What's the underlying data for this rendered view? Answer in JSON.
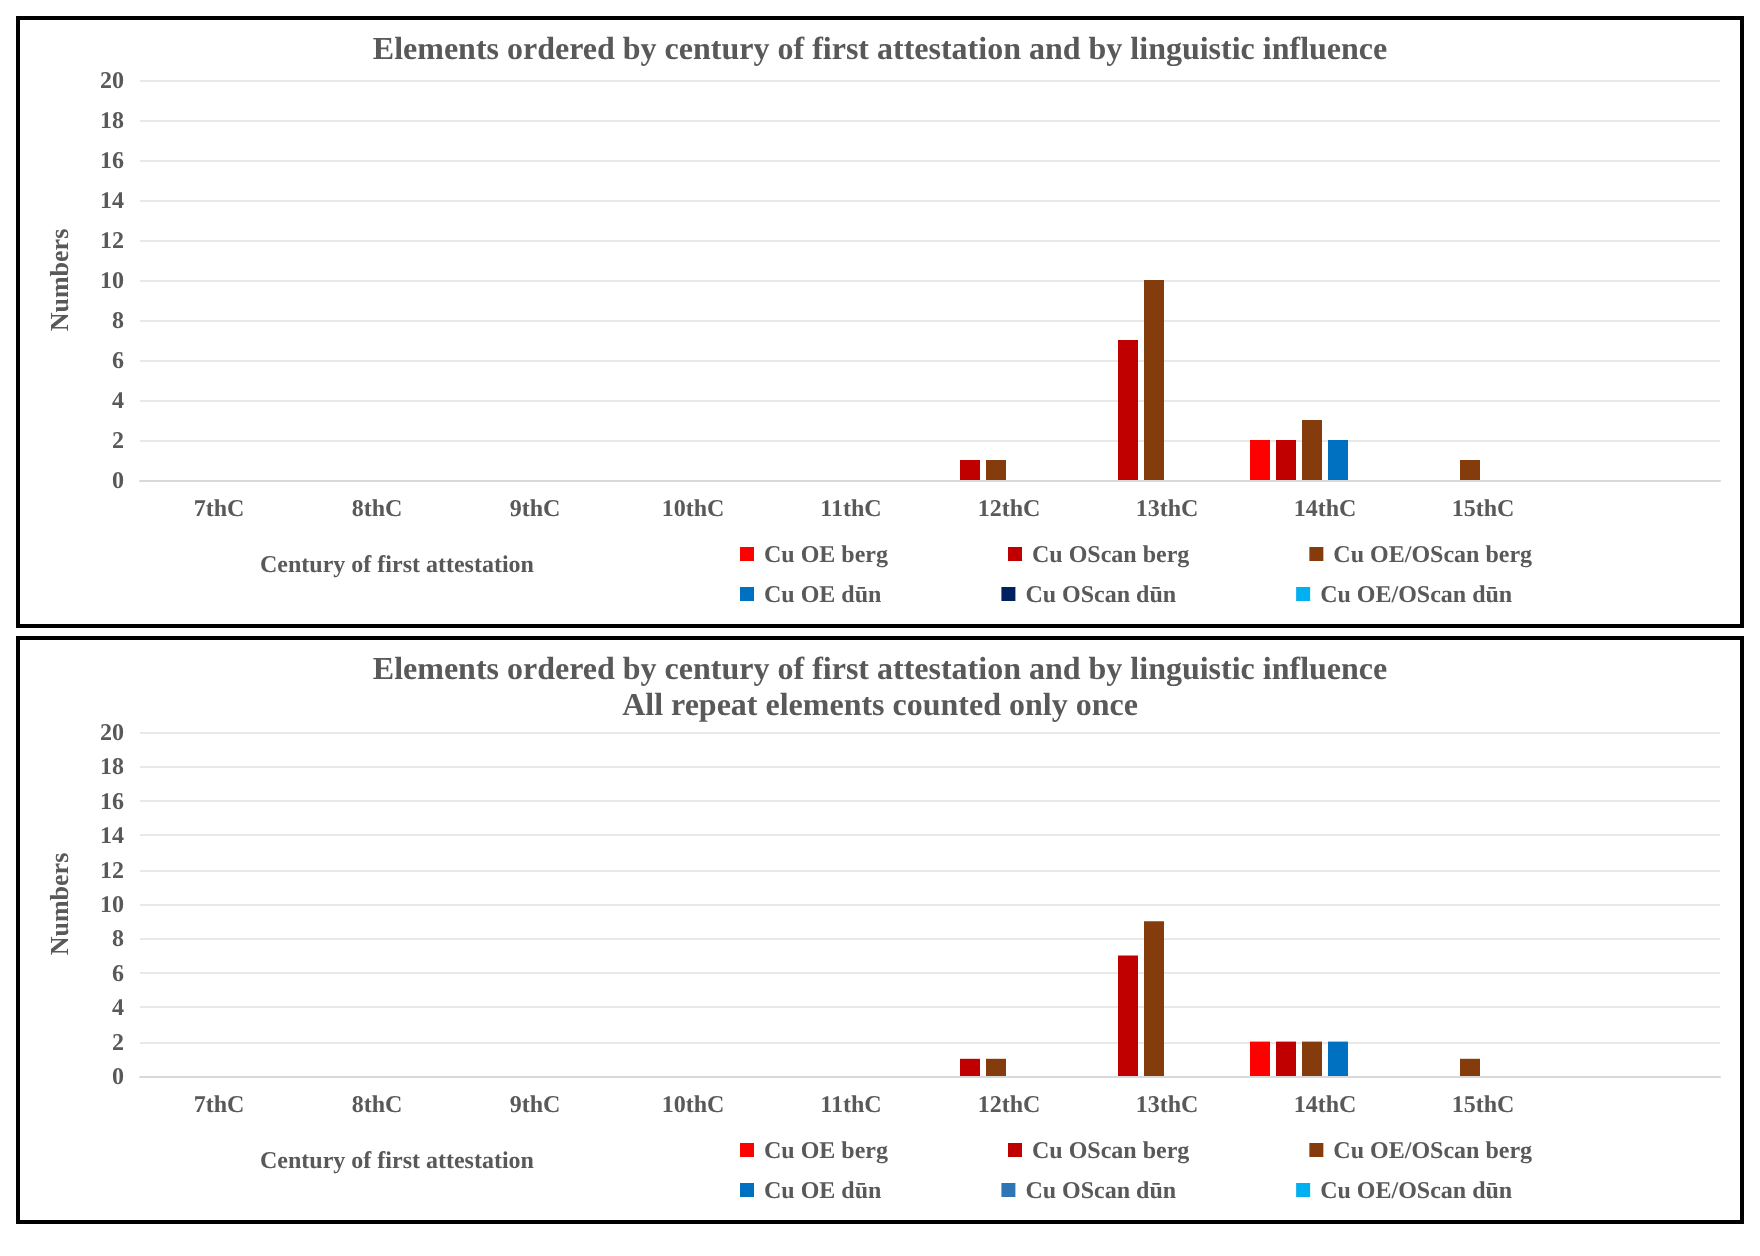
{
  "chart_data": [
    {
      "type": "bar",
      "title": "Elements ordered by century of first attestation and by linguistic influence",
      "xlabel": "Century of first attestation",
      "ylabel": "Numbers",
      "categories": [
        "7thC",
        "8thC",
        "9thC",
        "10thC",
        "11thC",
        "12thC",
        "13thC",
        "14thC",
        "15thC",
        null
      ],
      "series": [
        {
          "name": "Cu OE berg",
          "color": "#ff0000",
          "values": [
            0,
            0,
            0,
            0,
            0,
            0,
            0,
            2,
            0,
            0
          ]
        },
        {
          "name": "Cu OScan berg",
          "color": "#c00000",
          "values": [
            0,
            0,
            0,
            0,
            0,
            1,
            7,
            2,
            0,
            0
          ]
        },
        {
          "name": "Cu OE/OScan berg",
          "color": "#843c0c",
          "values": [
            0,
            0,
            0,
            0,
            0,
            1,
            10,
            3,
            1,
            0
          ]
        },
        {
          "name": "Cu OE dūn",
          "color": "#0070c0",
          "values": [
            0,
            0,
            0,
            0,
            0,
            0,
            0,
            2,
            0,
            0
          ]
        },
        {
          "name": "Cu OScan dūn",
          "color": "#002060",
          "values": [
            0,
            0,
            0,
            0,
            0,
            0,
            0,
            0,
            0,
            0
          ]
        },
        {
          "name": "Cu OE/OScan dūn",
          "color": "#00b0f0",
          "values": [
            0,
            0,
            0,
            0,
            0,
            0,
            0,
            0,
            0,
            0
          ]
        }
      ],
      "ylim": [
        0,
        20
      ],
      "yticks": [
        0,
        2,
        4,
        6,
        8,
        10,
        12,
        14,
        16,
        18,
        20
      ],
      "grid": "y",
      "legend": "bottom"
    },
    {
      "type": "bar",
      "title": "Elements ordered by century of first attestation and by linguistic influence",
      "subtitle": "All repeat elements counted only once",
      "xlabel": "Century of first attestation",
      "ylabel": "Numbers",
      "categories": [
        "7thC",
        "8thC",
        "9thC",
        "10thC",
        "11thC",
        "12thC",
        "13thC",
        "14thC",
        "15thC",
        null
      ],
      "series": [
        {
          "name": "Cu OE berg",
          "color": "#ff0000",
          "values": [
            0,
            0,
            0,
            0,
            0,
            0,
            0,
            2,
            0,
            0
          ]
        },
        {
          "name": "Cu OScan berg",
          "color": "#c00000",
          "values": [
            0,
            0,
            0,
            0,
            0,
            1,
            7,
            2,
            0,
            0
          ]
        },
        {
          "name": "Cu OE/OScan berg",
          "color": "#843c0c",
          "values": [
            0,
            0,
            0,
            0,
            0,
            1,
            9,
            2,
            1,
            0
          ]
        },
        {
          "name": "Cu OE dūn",
          "color": "#0070c0",
          "values": [
            0,
            0,
            0,
            0,
            0,
            0,
            0,
            2,
            0,
            0
          ]
        },
        {
          "name": "Cu OScan dūn",
          "color": "#2e75b6",
          "values": [
            0,
            0,
            0,
            0,
            0,
            0,
            0,
            0,
            0,
            0
          ]
        },
        {
          "name": "Cu OE/OScan dūn",
          "color": "#00b0f0",
          "values": [
            0,
            0,
            0,
            0,
            0,
            0,
            0,
            0,
            0,
            0
          ]
        }
      ],
      "ylim": [
        0,
        20
      ],
      "yticks": [
        0,
        2,
        4,
        6,
        8,
        10,
        12,
        14,
        16,
        18,
        20
      ],
      "grid": "y",
      "legend": "bottom"
    }
  ]
}
